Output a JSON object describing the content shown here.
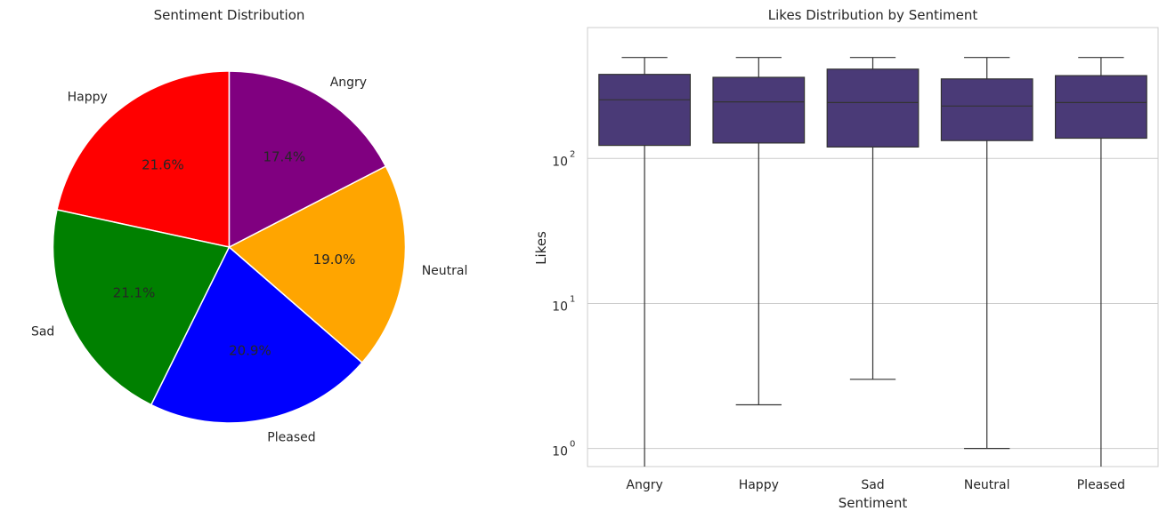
{
  "chart_data": [
    {
      "type": "pie",
      "title": "Sentiment Distribution",
      "slices": [
        {
          "label": "Happy",
          "value": 21.6,
          "pct_label": "21.6%",
          "color": "#ff0000"
        },
        {
          "label": "Sad",
          "value": 21.1,
          "pct_label": "21.1%",
          "color": "#008000"
        },
        {
          "label": "Pleased",
          "value": 20.9,
          "pct_label": "20.9%",
          "color": "#0000ff"
        },
        {
          "label": "Neutral",
          "value": 19.0,
          "pct_label": "19.0%",
          "color": "#ffa500"
        },
        {
          "label": "Angry",
          "value": 17.4,
          "pct_label": "17.4%",
          "color": "#800080"
        }
      ],
      "start_angle_deg": 90,
      "direction": "counterclockwise"
    },
    {
      "type": "box",
      "title": "Likes Distribution by Sentiment",
      "xlabel": "Sentiment",
      "ylabel": "Likes",
      "yscale": "log",
      "ylim": [
        0.75,
        800
      ],
      "yticks": [
        {
          "value": 1,
          "base": "10",
          "exp": "0"
        },
        {
          "value": 10,
          "base": "10",
          "exp": "1"
        },
        {
          "value": 100,
          "base": "10",
          "exp": "2"
        }
      ],
      "grid": true,
      "box_color": "#4a3a77",
      "categories": [
        "Angry",
        "Happy",
        "Sad",
        "Neutral",
        "Pleased"
      ],
      "boxes": [
        {
          "category": "Angry",
          "whisker_low": 0.75,
          "q1": 123,
          "median": 254,
          "q3": 380,
          "whisker_high": 497
        },
        {
          "category": "Happy",
          "whisker_low": 2,
          "q1": 128,
          "median": 246,
          "q3": 363,
          "whisker_high": 497
        },
        {
          "category": "Sad",
          "whisker_low": 3,
          "q1": 120,
          "median": 243,
          "q3": 413,
          "whisker_high": 497
        },
        {
          "category": "Neutral",
          "whisker_low": 1,
          "q1": 133,
          "median": 230,
          "q3": 354,
          "whisker_high": 497
        },
        {
          "category": "Pleased",
          "whisker_low": 0.75,
          "q1": 138,
          "median": 243,
          "q3": 373,
          "whisker_high": 497
        }
      ]
    }
  ]
}
